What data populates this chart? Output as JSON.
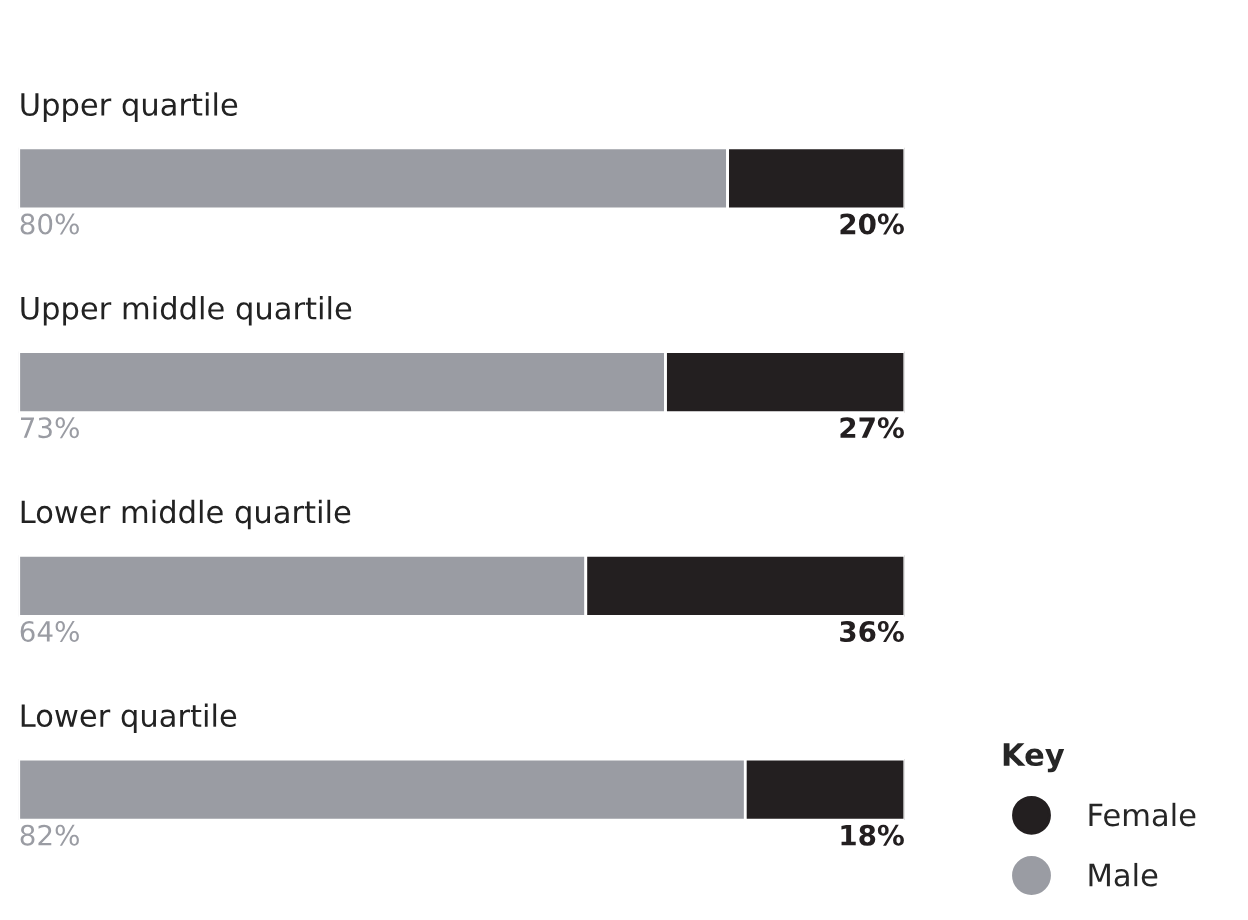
{
  "chart_data": {
    "type": "bar",
    "orientation": "horizontal",
    "stacked": true,
    "categories": [
      "Upper quartile",
      "Upper middle quartile",
      "Lower middle quartile",
      "Lower quartile"
    ],
    "series": [
      {
        "name": "Male",
        "color": "#9a9ca3",
        "values": [
          80,
          73,
          64,
          82
        ],
        "value_labels": [
          "80%",
          "73%",
          "64%",
          "82%"
        ]
      },
      {
        "name": "Female",
        "color": "#231f20",
        "values": [
          20,
          27,
          36,
          18
        ],
        "value_labels": [
          "20%",
          "27%",
          "36%",
          "18%"
        ]
      }
    ],
    "legend": "bottom right",
    "legend_title": "Key",
    "marker": "circle"
  }
}
